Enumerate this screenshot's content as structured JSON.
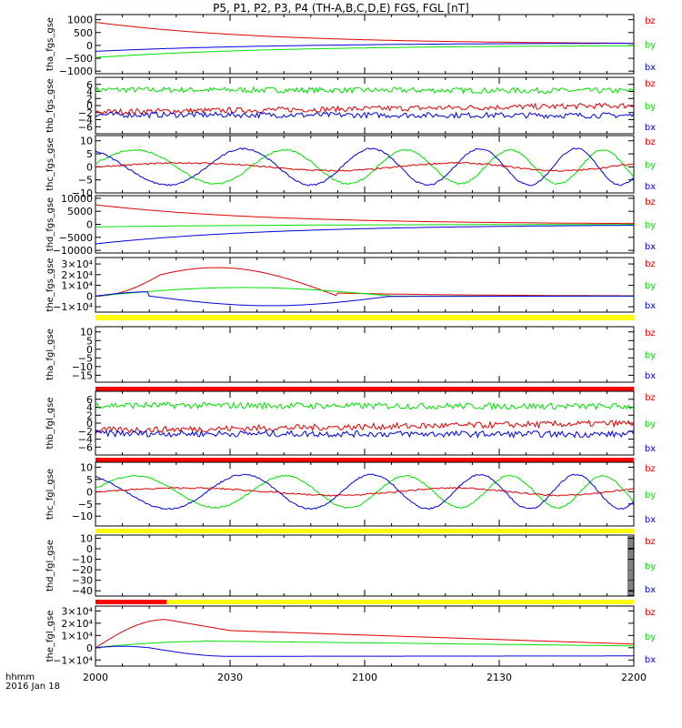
{
  "title": "P5, P1, P2, P3, P4 (TH-A,B,C,D,E) FGS, FGL [nT]",
  "footer": {
    "line1": "hhmm",
    "line2": "2016 Jan 18"
  },
  "colors": {
    "bz": "#e00000",
    "by": "#00e000",
    "bx": "#0000e0",
    "yellow": "#ffff00",
    "red_bar": "#ff0000"
  },
  "chart_data": [
    {
      "type": "line",
      "ylabel": "tha_fgs_gse",
      "ylim": [
        -1100,
        1200
      ],
      "ticks": [
        1000,
        500,
        0,
        -500,
        -1000
      ],
      "tick_labels": [
        "1000",
        "500",
        "0",
        "−500",
        "−1000"
      ],
      "x_range": [
        "2000",
        "2200"
      ],
      "legend": [
        "bz",
        "by",
        "bx"
      ],
      "series": [
        {
          "name": "bz",
          "start": 900,
          "end": 50,
          "shape": "decay"
        },
        {
          "name": "by",
          "start": -470,
          "end": 10,
          "shape": "rise"
        },
        {
          "name": "bx",
          "start": -230,
          "end": 100,
          "shape": "rise"
        }
      ]
    },
    {
      "type": "line",
      "ylabel": "thb_fgs_gse",
      "ylim": [
        -8,
        8
      ],
      "ticks": [
        6,
        4,
        2,
        0,
        -2,
        -4,
        -6
      ],
      "tick_labels": [
        "6",
        "4",
        "2",
        "0",
        "−2",
        "−4",
        "−6"
      ],
      "x_range": [
        "2000",
        "2200"
      ],
      "legend": [
        "bz",
        "by",
        "bx"
      ],
      "series": [
        {
          "name": "by",
          "start": 4.5,
          "end": 4.2,
          "shape": "noisy"
        },
        {
          "name": "bz",
          "start": -1.8,
          "end": 0.0,
          "shape": "noisy"
        },
        {
          "name": "bx",
          "start": -2.6,
          "end": -2.8,
          "shape": "noisy"
        }
      ]
    },
    {
      "type": "line",
      "ylabel": "thc_fgs_gse",
      "ylim": [
        -10,
        12
      ],
      "ticks": [
        10,
        5,
        0,
        -5,
        -10
      ],
      "tick_labels": [
        "10",
        "5",
        "0",
        "−5",
        "−10"
      ],
      "x_range": [
        "2000",
        "2200"
      ],
      "legend": [
        "bz",
        "by",
        "bx"
      ],
      "series": [
        {
          "name": "by",
          "amp": 6.5,
          "period": 42,
          "phase": 0.2,
          "shape": "wave"
        },
        {
          "name": "bx",
          "amp": 7,
          "period": 42,
          "phase": 2.1,
          "shape": "wave"
        },
        {
          "name": "bz",
          "amp": 1.5,
          "period": 90,
          "phase": 0,
          "shape": "wave"
        }
      ]
    },
    {
      "type": "line",
      "ylabel": "thd_fgs_gse",
      "ylim": [
        -11000,
        11000
      ],
      "ticks": [
        10000,
        5000,
        0,
        -5000,
        -10000
      ],
      "tick_labels": [
        "10000",
        "5000",
        "0",
        "−5000",
        "−10000"
      ],
      "x_range": [
        "2000",
        "2200"
      ],
      "legend": [
        "bz",
        "by",
        "bx"
      ],
      "series": [
        {
          "name": "bz",
          "start": 7500,
          "end": 0,
          "shape": "decay"
        },
        {
          "name": "by",
          "start": -1000,
          "end": 0,
          "shape": "rise"
        },
        {
          "name": "bx",
          "start": -7500,
          "end": 0,
          "shape": "rise"
        }
      ]
    },
    {
      "type": "line",
      "ylabel": "the_fgs_gse",
      "ylim": [
        -15000,
        36000
      ],
      "ticks": [
        30000,
        20000,
        10000,
        0,
        -10000
      ],
      "tick_labels": [
        "3×10⁴",
        "2×10⁴",
        "1×10⁴",
        "0",
        "−1×10⁴"
      ],
      "x_range": [
        "2000",
        "2200"
      ],
      "legend": [
        "bz",
        "by",
        "bx"
      ],
      "series": [
        {
          "name": "bz",
          "peak": 28000,
          "shape": "bump"
        },
        {
          "name": "by",
          "peak": 8000,
          "shape": "bump2"
        },
        {
          "name": "bx",
          "peak": -9000,
          "shape": "dip"
        }
      ]
    },
    {
      "type": "line",
      "ylabel": "tha_fgl_gse",
      "ylim": [
        -19,
        13
      ],
      "ticks": [
        10,
        5,
        0,
        -5,
        -10,
        -15
      ],
      "tick_labels": [
        "10",
        "5",
        "0",
        "−5",
        "−10",
        "−15"
      ],
      "x_range": [
        "2000",
        "2200"
      ],
      "legend": [
        "bz",
        "by",
        "bx"
      ],
      "series": []
    },
    {
      "type": "line",
      "ylabel": "thb_fgl_gse",
      "ylim": [
        -8,
        8
      ],
      "ticks": [
        6,
        4,
        2,
        0,
        -2,
        -4,
        -6
      ],
      "tick_labels": [
        "6",
        "4",
        "2",
        "0",
        "−2",
        "−4",
        "−6"
      ],
      "x_range": [
        "2000",
        "2200"
      ],
      "legend": [
        "bz",
        "by",
        "bx"
      ],
      "series": [
        {
          "name": "by",
          "start": 4.5,
          "end": 4.2,
          "shape": "noisy"
        },
        {
          "name": "bz",
          "start": -1.8,
          "end": 0.0,
          "shape": "noisy"
        },
        {
          "name": "bx",
          "start": -2.6,
          "end": -2.8,
          "shape": "noisy"
        }
      ]
    },
    {
      "type": "line",
      "ylabel": "thc_fgl_gse",
      "ylim": [
        -14,
        12
      ],
      "ticks": [
        10,
        5,
        0,
        -5,
        -10
      ],
      "tick_labels": [
        "10",
        "5",
        "0",
        "−5",
        "−10"
      ],
      "x_range": [
        "2000",
        "2200"
      ],
      "legend": [
        "bz",
        "by",
        "bx"
      ],
      "series": [
        {
          "name": "by",
          "amp": 6.5,
          "period": 42,
          "phase": 0.2,
          "shape": "wave"
        },
        {
          "name": "bx",
          "amp": 7,
          "period": 42,
          "phase": 2.1,
          "shape": "wave"
        },
        {
          "name": "bz",
          "amp": 1.5,
          "period": 90,
          "phase": 0,
          "shape": "wave"
        }
      ]
    },
    {
      "type": "line",
      "ylabel": "thd_fgl_gse",
      "ylim": [
        -45,
        13
      ],
      "ticks": [
        10,
        0,
        -10,
        -20,
        -30,
        -40
      ],
      "tick_labels": [
        "10",
        "0",
        "−10",
        "−20",
        "−30",
        "−40"
      ],
      "x_range": [
        "2000",
        "2200"
      ],
      "legend": [
        "bz",
        "by",
        "bx"
      ],
      "series": []
    },
    {
      "type": "line",
      "ylabel": "the_fgl_gse",
      "ylim": [
        -15000,
        34000
      ],
      "ticks": [
        30000,
        20000,
        10000,
        0,
        -10000
      ],
      "tick_labels": [
        "3×10⁴",
        "2×10⁴",
        "1×10⁴",
        "0",
        "−1×10⁴"
      ],
      "x_range": [
        "2000",
        "2200"
      ],
      "legend": [
        "bz",
        "by",
        "bx"
      ],
      "series": [
        {
          "name": "bz",
          "peak": 23000,
          "shape": "fglbump"
        },
        {
          "name": "by",
          "peak": 5500,
          "shape": "fglbump2"
        },
        {
          "name": "bx",
          "peak": 1200,
          "shape": "fgldip"
        }
      ]
    }
  ],
  "x_axis": {
    "ticks": [
      "2000",
      "2030",
      "2100",
      "2130",
      "2200"
    ]
  }
}
